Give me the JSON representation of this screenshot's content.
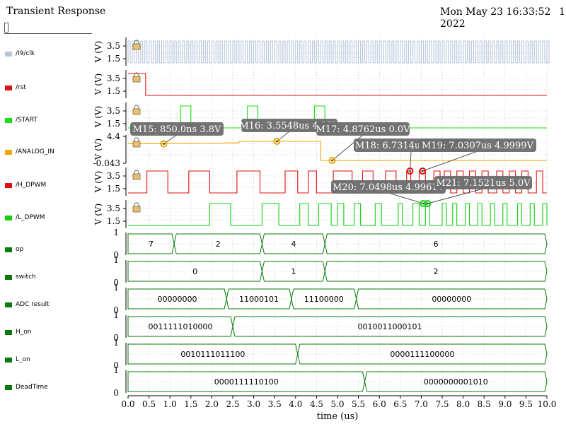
{
  "header": {
    "title": "Transient Response",
    "date": "Mon May 23 16:33:52 2022",
    "page": "1"
  },
  "colors": {
    "clk": "#b8c6dd",
    "rst": "#e01010",
    "start": "#10e010",
    "analog": "#f2a400",
    "hdpwm": "#e01010",
    "ldpwm": "#10d010",
    "bus": "#0a7a0a",
    "grid": "#bbbbbb",
    "marker_box": "#6b6b6b"
  },
  "chart_data": {
    "type": "line",
    "xlabel": "time (us)",
    "xlim": [
      0.0,
      10.0
    ],
    "xticks": [
      "0.0",
      "0.5",
      "1.0",
      "1.5",
      "2.0",
      "2.5",
      "3.0",
      "3.5",
      "4.0",
      "4.5",
      "5.0",
      "5.5",
      "6.0",
      "6.5",
      "7.0",
      "7.5",
      "8.0",
      "8.5",
      "9.0",
      "9.5",
      "10.0"
    ],
    "analog_traces": [
      {
        "name": "/I9/clk",
        "ylabel": "V (V)",
        "yticks": [
          "3.5",
          "1.5"
        ],
        "kind": "clock",
        "period": 0.1,
        "high": 5.0,
        "low": 0.0
      },
      {
        "name": "/rst",
        "ylabel": "V (V)",
        "yticks": [
          "3.5",
          "1.5"
        ],
        "kind": "digital",
        "points": [
          [
            0.0,
            5.0
          ],
          [
            0.42,
            5.0
          ],
          [
            0.42,
            0.0
          ],
          [
            10.0,
            0.0
          ]
        ]
      },
      {
        "name": "/START",
        "ylabel": "V (V)",
        "yticks": [
          "3.5",
          "1.5"
        ],
        "kind": "digital",
        "points": [
          [
            0.0,
            0.0
          ],
          [
            1.25,
            0.0
          ],
          [
            1.25,
            5.0
          ],
          [
            1.5,
            5.0
          ],
          [
            1.5,
            0.0
          ],
          [
            2.85,
            0.0
          ],
          [
            2.85,
            5.0
          ],
          [
            3.1,
            5.0
          ],
          [
            3.1,
            0.0
          ],
          [
            4.45,
            0.0
          ],
          [
            4.45,
            5.0
          ],
          [
            4.7,
            5.0
          ],
          [
            4.7,
            0.0
          ],
          [
            10.0,
            0.0
          ]
        ]
      },
      {
        "name": "/ANALOG_IN",
        "ylabel": "V (V)",
        "yticks": [
          "4.4",
          "-0.043"
        ],
        "kind": "analog",
        "points": [
          [
            0.0,
            3.8
          ],
          [
            0.95,
            3.8
          ],
          [
            0.95,
            3.85
          ],
          [
            1.6,
            3.85
          ],
          [
            1.6,
            3.95
          ],
          [
            2.3,
            3.95
          ],
          [
            2.3,
            4.0
          ],
          [
            2.65,
            4.0
          ],
          [
            2.65,
            4.35
          ],
          [
            4.6,
            4.35
          ],
          [
            4.6,
            0.0
          ],
          [
            10.0,
            0.0
          ]
        ]
      },
      {
        "name": "/H_DPWM",
        "ylabel": "V (V)",
        "yticks": [
          "3.5",
          "1.5"
        ],
        "kind": "digital",
        "pulses": [
          [
            0.45,
            0.95
          ],
          [
            1.45,
            1.95
          ],
          [
            2.6,
            3.15
          ],
          [
            3.75,
            4.05
          ],
          [
            4.3,
            4.5
          ],
          [
            4.9,
            5.35
          ],
          [
            5.6,
            5.85
          ],
          [
            6.15,
            6.4
          ],
          [
            6.65,
            6.75
          ],
          [
            6.95,
            7.1
          ],
          [
            7.3,
            7.45
          ],
          [
            7.55,
            7.7
          ],
          [
            7.85,
            8.0
          ],
          [
            8.15,
            8.3
          ],
          [
            8.45,
            8.6
          ],
          [
            8.8,
            8.95
          ],
          [
            9.1,
            9.25
          ],
          [
            9.4,
            9.55
          ],
          [
            9.75,
            9.9
          ]
        ]
      },
      {
        "name": "/L_DPWM",
        "ylabel": "V (V)",
        "yticks": [
          "3.5",
          "1.5"
        ],
        "kind": "digital",
        "pulses": [
          [
            1.95,
            2.45
          ],
          [
            3.2,
            3.6
          ],
          [
            4.1,
            4.3
          ],
          [
            4.55,
            4.85
          ],
          [
            5.0,
            5.15
          ],
          [
            5.4,
            5.55
          ],
          [
            5.9,
            6.05
          ],
          [
            6.45,
            6.55
          ],
          [
            6.8,
            6.95
          ],
          [
            7.1,
            7.2
          ],
          [
            7.5,
            7.6
          ],
          [
            7.75,
            7.85
          ],
          [
            8.05,
            8.15
          ],
          [
            8.35,
            8.45
          ],
          [
            8.65,
            8.75
          ],
          [
            8.95,
            9.05
          ],
          [
            9.3,
            9.4
          ],
          [
            9.6,
            9.7
          ],
          [
            9.9,
            10.0
          ]
        ]
      }
    ],
    "bus_traces": [
      {
        "name": "op",
        "ylim": [
          0,
          1
        ],
        "segments": [
          {
            "start": 0.0,
            "end": 1.1,
            "value": "7"
          },
          {
            "start": 1.1,
            "end": 3.2,
            "value": "2"
          },
          {
            "start": 3.2,
            "end": 4.7,
            "value": "4"
          },
          {
            "start": 4.7,
            "end": 10.0,
            "value": "6"
          }
        ]
      },
      {
        "name": "switch",
        "ylim": [
          0,
          1
        ],
        "segments": [
          {
            "start": 0.0,
            "end": 3.2,
            "value": "0"
          },
          {
            "start": 3.2,
            "end": 4.7,
            "value": "1"
          },
          {
            "start": 4.7,
            "end": 10.0,
            "value": "2"
          }
        ]
      },
      {
        "name": "ADC result",
        "ylim": [
          0,
          1
        ],
        "segments": [
          {
            "start": 0.0,
            "end": 2.35,
            "value": "00000000"
          },
          {
            "start": 2.35,
            "end": 3.9,
            "value": "11000101"
          },
          {
            "start": 3.9,
            "end": 5.45,
            "value": "11100000"
          },
          {
            "start": 5.45,
            "end": 10.0,
            "value": "00000000"
          }
        ]
      },
      {
        "name": "H_on",
        "ylim": [
          0,
          1
        ],
        "segments": [
          {
            "start": 0.0,
            "end": 2.5,
            "value": "0011111010000"
          },
          {
            "start": 2.5,
            "end": 10.0,
            "value": "0010011000101"
          }
        ]
      },
      {
        "name": "L_on",
        "ylim": [
          0,
          1
        ],
        "segments": [
          {
            "start": 0.0,
            "end": 4.05,
            "value": "0010111011100"
          },
          {
            "start": 4.05,
            "end": 10.0,
            "value": "0000111100000"
          }
        ]
      },
      {
        "name": "DeadTime",
        "ylim": [
          0,
          1
        ],
        "segments": [
          {
            "start": 0.0,
            "end": 5.65,
            "value": "0000111110100"
          },
          {
            "start": 5.65,
            "end": 10.0,
            "value": "0000000001010"
          }
        ]
      }
    ],
    "markers": [
      {
        "label": "M15: 850.0ns 3.8V",
        "trace": 3,
        "x": 0.85,
        "y": 3.8,
        "color": "#f2a400"
      },
      {
        "label": "M16: 3.5548us 4.35V",
        "trace": 3,
        "x": 3.5548,
        "y": 4.35,
        "color": "#f2a400"
      },
      {
        "label": "M17: 4.8762us 0.0V",
        "trace": 3,
        "x": 4.8762,
        "y": 0.0,
        "color": "#f2a400"
      },
      {
        "label": "M18: 6.7314us 4.9999V",
        "trace": 4,
        "x": 6.7314,
        "y": 4.9999,
        "color": "#e01010"
      },
      {
        "label": "M19: 7.0307us 4.9999V",
        "trace": 4,
        "x": 7.0307,
        "y": 4.9999,
        "color": "#e01010"
      },
      {
        "label": "M20: 7.0498us 4.9961V",
        "trace": 5,
        "x": 7.0498,
        "y": 4.9961,
        "color": "#10d010"
      },
      {
        "label": "M21: 7.1521us 5.0V",
        "trace": 5,
        "x": 7.1521,
        "y": 5.0,
        "color": "#10d010"
      }
    ]
  }
}
